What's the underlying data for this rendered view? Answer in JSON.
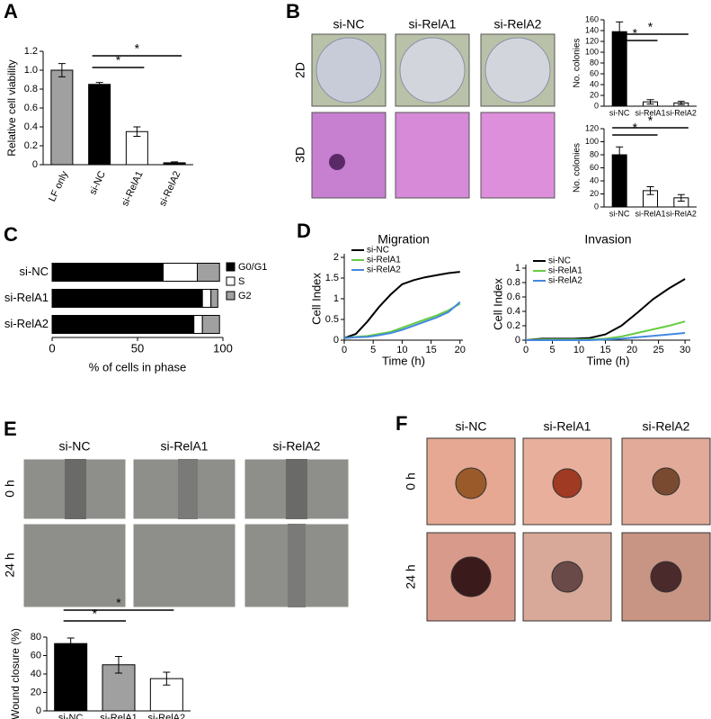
{
  "figure": {
    "panels": [
      "A",
      "B",
      "C",
      "D",
      "E",
      "F"
    ],
    "B": {
      "columns": [
        "si-NC",
        "si-RelA1",
        "si-RelA2"
      ],
      "rows": [
        "2D",
        "3D"
      ]
    },
    "E": {
      "columns": [
        "si-NC",
        "si-RelA1",
        "si-RelA2"
      ],
      "rows": [
        "0 h",
        "24 h"
      ]
    },
    "F": {
      "columns": [
        "si-NC",
        "si-RelA1",
        "si-RelA2"
      ],
      "rows": [
        "0 h",
        "24 h"
      ]
    }
  },
  "chart_data": [
    {
      "type": "bar",
      "y_label": "Relative cell viability",
      "categories": [
        "LF only",
        "si-NC",
        "si-RelA1",
        "si-RelA2"
      ],
      "values": [
        1.0,
        0.85,
        0.35,
        0.02
      ],
      "errors": [
        0.07,
        0.02,
        0.05,
        0.01
      ],
      "colors": [
        "#a0a0a0",
        "#000000",
        "#ffffff",
        "#000000"
      ],
      "ylim": [
        0,
        1.2
      ],
      "yticks": [
        0,
        0.2,
        0.4,
        0.6,
        0.8,
        {
          "value": 1.0,
          "label": "1.0"
        },
        1.2
      ],
      "annotations": [
        "*",
        "*"
      ]
    },
    {
      "type": "bar",
      "y_label": "No. colonies",
      "categories": [
        "si-NC",
        "si-RelA1",
        "si-RelA2"
      ],
      "values": [
        138,
        8,
        6
      ],
      "errors": [
        18,
        4,
        3
      ],
      "colors": [
        "#000000",
        "#ffffff",
        "#ffffff"
      ],
      "ylim": [
        0,
        160
      ],
      "yticks": [
        0,
        20,
        40,
        60,
        80,
        100,
        120,
        140,
        160
      ],
      "annotations": [
        "*",
        "*"
      ]
    },
    {
      "type": "bar",
      "y_label": "No. colonies",
      "categories": [
        "si-NC",
        "si-RelA1",
        "si-RelA2"
      ],
      "values": [
        80,
        25,
        14
      ],
      "errors": [
        12,
        6,
        5
      ],
      "colors": [
        "#000000",
        "#ffffff",
        "#ffffff"
      ],
      "ylim": [
        0,
        120
      ],
      "yticks": [
        0,
        20,
        40,
        60,
        80,
        100,
        120
      ],
      "annotations": [
        "*",
        "*"
      ]
    },
    {
      "type": "stackedbar",
      "x_label": "% of cells in phase",
      "categories": [
        "si-NC",
        "si-RelA1",
        "si-RelA2"
      ],
      "series": [
        {
          "name": "G0/G1",
          "color": "#000000",
          "values": [
            65,
            88,
            83
          ]
        },
        {
          "name": "S",
          "color": "#ffffff",
          "values": [
            20,
            5,
            5
          ]
        },
        {
          "name": "G2",
          "color": "#a0a0a0",
          "values": [
            13,
            4,
            10
          ]
        }
      ],
      "xlim": [
        0,
        100
      ],
      "xticks": [
        0,
        50,
        100
      ]
    },
    {
      "type": "line",
      "title": "Migration",
      "x_label": "Time (h)",
      "y_label": "Cell Index",
      "x": [
        0,
        2,
        4,
        6,
        8,
        10,
        12,
        14,
        16,
        18,
        20
      ],
      "series": [
        {
          "name": "si-NC",
          "color": "#000000",
          "values": [
            0.05,
            0.15,
            0.45,
            0.8,
            1.1,
            1.35,
            1.45,
            1.52,
            1.57,
            1.62,
            1.65
          ]
        },
        {
          "name": "si-RelA1",
          "color": "#66cc44",
          "values": [
            0.05,
            0.08,
            0.1,
            0.15,
            0.2,
            0.3,
            0.4,
            0.5,
            0.6,
            0.72,
            0.88
          ]
        },
        {
          "name": "si-RelA2",
          "color": "#4488dd",
          "values": [
            0.05,
            0.07,
            0.08,
            0.12,
            0.17,
            0.25,
            0.35,
            0.45,
            0.55,
            0.68,
            0.92
          ]
        }
      ],
      "xlim": [
        0,
        20.5
      ],
      "xticks": [
        0,
        5,
        10,
        15,
        20
      ],
      "ylim": [
        0,
        2
      ],
      "yticks": [
        0,
        0.5,
        1,
        1.5,
        2
      ]
    },
    {
      "type": "line",
      "title": "Invasion",
      "x_label": "Time (h)",
      "y_label": "Cell Index",
      "x": [
        0,
        3,
        6,
        9,
        12,
        15,
        18,
        21,
        24,
        27,
        30
      ],
      "series": [
        {
          "name": "si-NC",
          "color": "#000000",
          "values": [
            0,
            0.02,
            0.02,
            0.02,
            0.03,
            0.08,
            0.2,
            0.38,
            0.57,
            0.72,
            0.85
          ]
        },
        {
          "name": "si-RelA1",
          "color": "#66cc44",
          "values": [
            0,
            0.01,
            0.01,
            0.01,
            0.01,
            0.02,
            0.05,
            0.1,
            0.15,
            0.2,
            0.26
          ]
        },
        {
          "name": "si-RelA2",
          "color": "#4488dd",
          "values": [
            0,
            0,
            0,
            0,
            0,
            0.01,
            0.02,
            0.04,
            0.06,
            0.08,
            0.1
          ]
        }
      ],
      "xlim": [
        0,
        31
      ],
      "xticks": [
        0,
        5,
        10,
        15,
        20,
        25,
        30
      ],
      "ylim": [
        0,
        1
      ],
      "yticks": [
        0,
        0.2,
        0.4,
        0.6,
        0.8,
        1
      ]
    },
    {
      "type": "bar",
      "y_label": "Wound closure (%)",
      "categories": [
        "si-NC",
        "si-RelA1",
        "si-RelA2"
      ],
      "values": [
        73,
        50,
        35
      ],
      "errors": [
        6,
        9,
        7
      ],
      "colors": [
        "#000000",
        "#a0a0a0",
        "#ffffff"
      ],
      "ylim": [
        0,
        80
      ],
      "yticks": [
        0,
        20,
        40,
        60,
        80
      ],
      "annotations": [
        "*",
        "*"
      ]
    }
  ]
}
